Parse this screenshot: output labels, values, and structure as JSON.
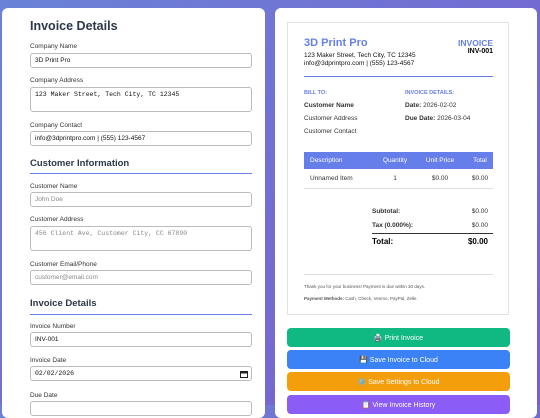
{
  "form": {
    "heading1": "Invoice Details",
    "company_name": {
      "label": "Company Name",
      "value": "3D Print Pro"
    },
    "company_address": {
      "label": "Company Address",
      "value": "123 Maker Street, Tech City, TC 12345"
    },
    "company_contact": {
      "label": "Company Contact",
      "value": "info@3dprintpro.com | (555) 123-4567"
    },
    "heading2": "Customer Information",
    "customer_name": {
      "label": "Customer Name",
      "placeholder": "John Doe"
    },
    "customer_address": {
      "label": "Customer Address",
      "placeholder": "456 Client Ave, Customer City, CC 67890"
    },
    "customer_contact": {
      "label": "Customer Email/Phone",
      "placeholder": "customer@email.com"
    },
    "heading3": "Invoice Details",
    "invoice_number": {
      "label": "Invoice Number",
      "value": "INV-001"
    },
    "invoice_date": {
      "label": "Invoice Date",
      "value": "02/02/2026"
    },
    "due_date": {
      "label": "Due Date"
    }
  },
  "preview": {
    "company": "3D Print Pro",
    "address": "123 Maker Street, Tech City, TC 12345",
    "contact": "info@3dprintpro.com | (555) 123-4567",
    "invoice_title": "INVOICE",
    "invoice_number": "INV-001",
    "bill_to": "BILL TO:",
    "customer_name": "Customer Name",
    "customer_address": "Customer Address",
    "customer_contact": "Customer Contact",
    "details_title": "INVOICE DETAILS:",
    "date_label": "Date:",
    "date": "2026-02-02",
    "due_label": "Due Date:",
    "due": "2026-03-04",
    "table": {
      "headers": [
        "Description",
        "Quantity",
        "Unit Price",
        "Total"
      ],
      "rows": [
        [
          "Unnamed Item",
          "1",
          "$0.00",
          "$0.00"
        ]
      ]
    },
    "subtotal_label": "Subtotal:",
    "subtotal": "$0.00",
    "tax_label": "Tax (0.000%):",
    "tax": "$0.00",
    "total_label": "Total:",
    "total": "$0.00",
    "thanks": "Thank you for your business! Payment is due within 30 days.",
    "payment_label": "Payment Methods:",
    "payment": "Cash, Check, Venmo, PayPal, Zelle"
  },
  "buttons": [
    "🖨️ Print Invoice",
    "💾 Save Invoice to Cloud",
    "⚙️ Save Settings to Cloud",
    "📋 View Invoice History"
  ]
}
